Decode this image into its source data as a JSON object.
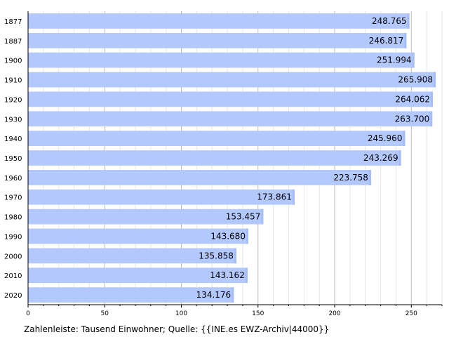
{
  "chart_data": {
    "type": "bar",
    "orientation": "horizontal",
    "categories": [
      "1877",
      "1887",
      "1900",
      "1910",
      "1920",
      "1930",
      "1940",
      "1950",
      "1960",
      "1970",
      "1980",
      "1990",
      "2000",
      "2010",
      "2020"
    ],
    "values": [
      248.765,
      246.817,
      251.994,
      265.908,
      264.062,
      263.7,
      245.96,
      243.269,
      223.758,
      173.861,
      153.457,
      143.68,
      135.858,
      143.162,
      134.176
    ],
    "value_labels": [
      "248.765",
      "246.817",
      "251.994",
      "265.908",
      "264.062",
      "263.700",
      "245.960",
      "243.269",
      "223.758",
      "173.861",
      "153.457",
      "143.680",
      "135.858",
      "143.162",
      "134.176"
    ],
    "xlim": [
      0,
      270
    ],
    "xticks": [
      0,
      50,
      100,
      150,
      200,
      250
    ],
    "grid": true,
    "bar_color": "#b3c8fd",
    "footnote": "Zahlenleiste: Tausend Einwohner; Quelle: {{INE.es EWZ-Archiv|44000}}"
  }
}
